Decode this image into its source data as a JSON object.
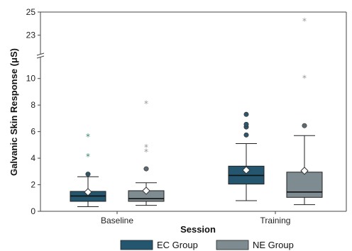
{
  "chart_data": {
    "type": "box",
    "xlabel": "Session",
    "ylabel": "Galvanic Skin Response (μS)",
    "categories": [
      "Baseline",
      "Training"
    ],
    "y_axis": {
      "broken": true,
      "lower_range": [
        0,
        11
      ],
      "lower_ticks": [
        "0",
        "2",
        "4",
        "6",
        "8",
        "10"
      ],
      "upper_range": [
        21.5,
        25
      ],
      "upper_ticks": [
        "23",
        "25"
      ]
    },
    "series": [
      {
        "name": "EC Group",
        "color": "#24566f",
        "boxes": [
          {
            "category": "Baseline",
            "whisker_low": 0.35,
            "q1": 0.75,
            "median": 1.15,
            "q3": 1.5,
            "whisker_high": 2.6,
            "mean": 1.45,
            "outliers": [
              {
                "value": 2.8,
                "marker": "circle"
              },
              {
                "value": 4.1,
                "marker": "star"
              },
              {
                "value": 5.6,
                "marker": "star"
              }
            ]
          },
          {
            "category": "Training",
            "whisker_low": 0.8,
            "q1": 2.05,
            "median": 2.7,
            "q3": 3.4,
            "whisker_high": 5.1,
            "mean": 3.1,
            "outliers": [
              {
                "value": 5.75,
                "marker": "circle"
              },
              {
                "value": 6.35,
                "marker": "circle"
              },
              {
                "value": 6.55,
                "marker": "circle"
              },
              {
                "value": 7.3,
                "marker": "circle"
              }
            ]
          }
        ]
      },
      {
        "name": "NE Group",
        "color": "#7e8c92",
        "boxes": [
          {
            "category": "Baseline",
            "whisker_low": 0.45,
            "q1": 0.75,
            "median": 0.95,
            "q3": 1.55,
            "whisker_high": 2.15,
            "mean": 1.55,
            "outliers": [
              {
                "value": 3.2,
                "marker": "circle"
              },
              {
                "value": 4.45,
                "marker": "star"
              },
              {
                "value": 4.8,
                "marker": "star"
              },
              {
                "value": 8.1,
                "marker": "star"
              }
            ]
          },
          {
            "category": "Training",
            "whisker_low": 0.5,
            "q1": 1.05,
            "median": 1.45,
            "q3": 2.95,
            "whisker_high": 5.7,
            "mean": 3.05,
            "outliers": [
              {
                "value": 6.45,
                "marker": "circle"
              },
              {
                "value": 10.0,
                "marker": "star"
              },
              {
                "value": 24.2,
                "marker": "star"
              }
            ]
          }
        ]
      }
    ],
    "legend": {
      "position": "bottom",
      "entries": [
        "EC Group",
        "NE Group"
      ]
    },
    "grid": false
  }
}
